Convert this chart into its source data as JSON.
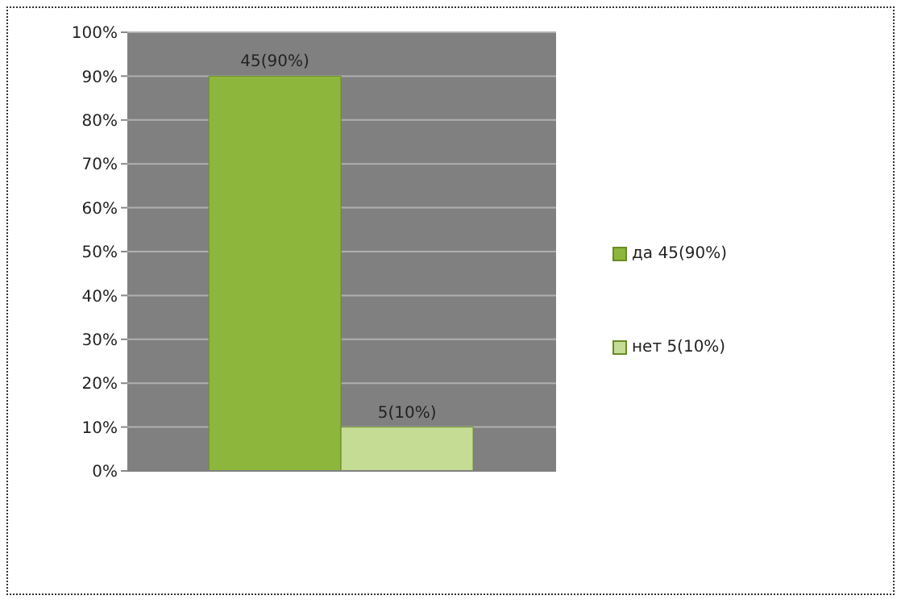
{
  "chart_data": {
    "type": "bar",
    "categories": [
      null
    ],
    "series": [
      {
        "name": "да 45(90%)",
        "color": "#8db63c",
        "values": [
          90
        ],
        "value_labels": [
          "45(90%)"
        ]
      },
      {
        "name": "нет 5(10%)",
        "color": "#c5dc94",
        "values": [
          10
        ],
        "value_labels": [
          "5(10%)"
        ]
      }
    ],
    "ylim": [
      0,
      100
    ],
    "yticks": [
      {
        "value": 0,
        "label": "0%"
      },
      {
        "value": 10,
        "label": "10%"
      },
      {
        "value": 20,
        "label": "20%"
      },
      {
        "value": 30,
        "label": "30%"
      },
      {
        "value": 40,
        "label": "40%"
      },
      {
        "value": 50,
        "label": "50%"
      },
      {
        "value": 60,
        "label": "60%"
      },
      {
        "value": 70,
        "label": "70%"
      },
      {
        "value": 80,
        "label": "80%"
      },
      {
        "value": 90,
        "label": "90%"
      },
      {
        "value": 100,
        "label": "100%"
      }
    ],
    "grid": "y",
    "legend": "right"
  }
}
